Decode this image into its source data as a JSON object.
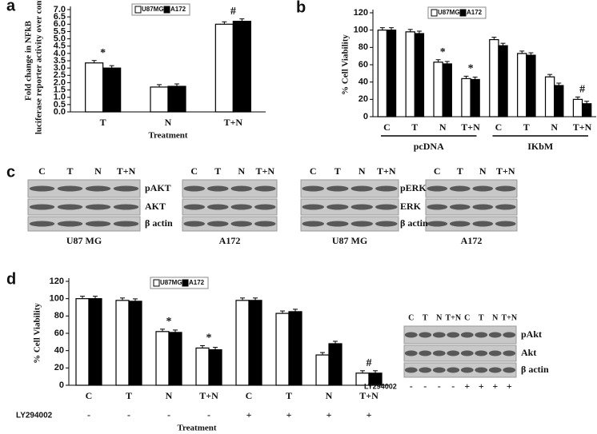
{
  "chart_data": [
    {
      "type": "bar",
      "panel": "a",
      "ylabel": "Fold change in NFkB luciferase reporter activity over control",
      "xlabel": "Treatment",
      "categories": [
        "T",
        "N",
        "T+N"
      ],
      "series": [
        {
          "name": "U87MG",
          "color": "#ffffff",
          "values": [
            3.35,
            1.7,
            6.0
          ]
        },
        {
          "name": "A172",
          "color": "#000000",
          "values": [
            3.0,
            1.75,
            6.2
          ]
        }
      ],
      "annotations": [
        "*",
        "#"
      ],
      "ylim": [
        0,
        7
      ],
      "yticks": [
        {
          "value": 0,
          "label": "0.0"
        },
        {
          "value": 0.5,
          "label": "0.5"
        },
        {
          "value": 1,
          "label": "1.0"
        },
        {
          "value": 1.5,
          "label": "1.5"
        },
        {
          "value": 2,
          "label": "2.0"
        },
        {
          "value": 2.5,
          "label": "2.5"
        },
        {
          "value": 3,
          "label": "3.0"
        },
        {
          "value": 3.5,
          "label": "3.5"
        },
        {
          "value": 4,
          "label": "4.0"
        },
        {
          "value": 4.5,
          "label": "4.5"
        },
        {
          "value": 5,
          "label": "5.0"
        },
        {
          "value": 5.5,
          "label": "5.5"
        },
        {
          "value": 6,
          "label": "6.0"
        },
        {
          "value": 6.5,
          "label": "6.5"
        },
        {
          "value": 7,
          "label": "7.0"
        }
      ]
    },
    {
      "type": "bar",
      "panel": "b",
      "ylabel": "% Cell Viability",
      "categories": [
        "C",
        "T",
        "N",
        "T+N",
        "C",
        "T",
        "N",
        "T+N"
      ],
      "groups": [
        "pcDNA",
        "IKbM"
      ],
      "series": [
        {
          "name": "U87MG",
          "color": "#ffffff",
          "values": [
            100,
            98,
            63,
            44,
            89,
            73,
            46,
            20
          ]
        },
        {
          "name": "A172",
          "color": "#000000",
          "values": [
            100,
            96,
            61,
            43,
            82,
            71,
            36,
            15
          ]
        }
      ],
      "annotations": [
        "*",
        "*",
        "#"
      ],
      "ylim": [
        0,
        120
      ],
      "yticks": [
        0,
        20,
        40,
        60,
        80,
        100,
        120
      ]
    },
    {
      "type": "bar",
      "panel": "d",
      "ylabel": "% Cell Viability",
      "xlabel": "Treatment",
      "categories": [
        "C",
        "T",
        "N",
        "T+N",
        "C",
        "T",
        "N",
        "T+N"
      ],
      "row_label": "LY294002",
      "row_values": [
        "-",
        "-",
        "-",
        "-",
        "+",
        "+",
        "+",
        "+"
      ],
      "series": [
        {
          "name": "U87MG",
          "color": "#ffffff",
          "values": [
            100,
            98,
            62,
            43,
            98,
            83,
            35,
            14
          ]
        },
        {
          "name": "A172",
          "color": "#000000",
          "values": [
            100,
            97,
            61,
            41,
            98,
            85,
            48,
            14
          ]
        }
      ],
      "annotations": [
        "*",
        "*",
        "#"
      ],
      "ylim": [
        0,
        120
      ],
      "yticks": [
        0,
        20,
        40,
        60,
        80,
        100,
        120
      ]
    }
  ],
  "blots": {
    "panel": "c",
    "items": [
      {
        "lanes": [
          "C",
          "T",
          "N",
          "T+N"
        ],
        "rows": [
          "pAKT",
          "AKT",
          "β actin"
        ],
        "cell_line": "U87 MG"
      },
      {
        "lanes": [
          "C",
          "T",
          "N",
          "T+N"
        ],
        "rows": [],
        "cell_line": "A172"
      },
      {
        "lanes": [
          "C",
          "T",
          "N",
          "T+N"
        ],
        "rows": [],
        "cell_line": "U87 MG"
      },
      {
        "lanes": [
          "C",
          "T",
          "N",
          "T+N"
        ],
        "rows": [
          "pERK",
          "ERK",
          "β actin"
        ],
        "cell_line": "A172"
      },
      {
        "lanes": [
          "C",
          "T",
          "N",
          "T+N",
          "C",
          "T",
          "N",
          "T+N"
        ],
        "rows": [
          "pAkt",
          "Akt",
          "β actin"
        ],
        "row_label": "LY294002",
        "row_values": [
          "-",
          "-",
          "-",
          "-",
          "+",
          "+",
          "+",
          "+"
        ]
      }
    ]
  }
}
